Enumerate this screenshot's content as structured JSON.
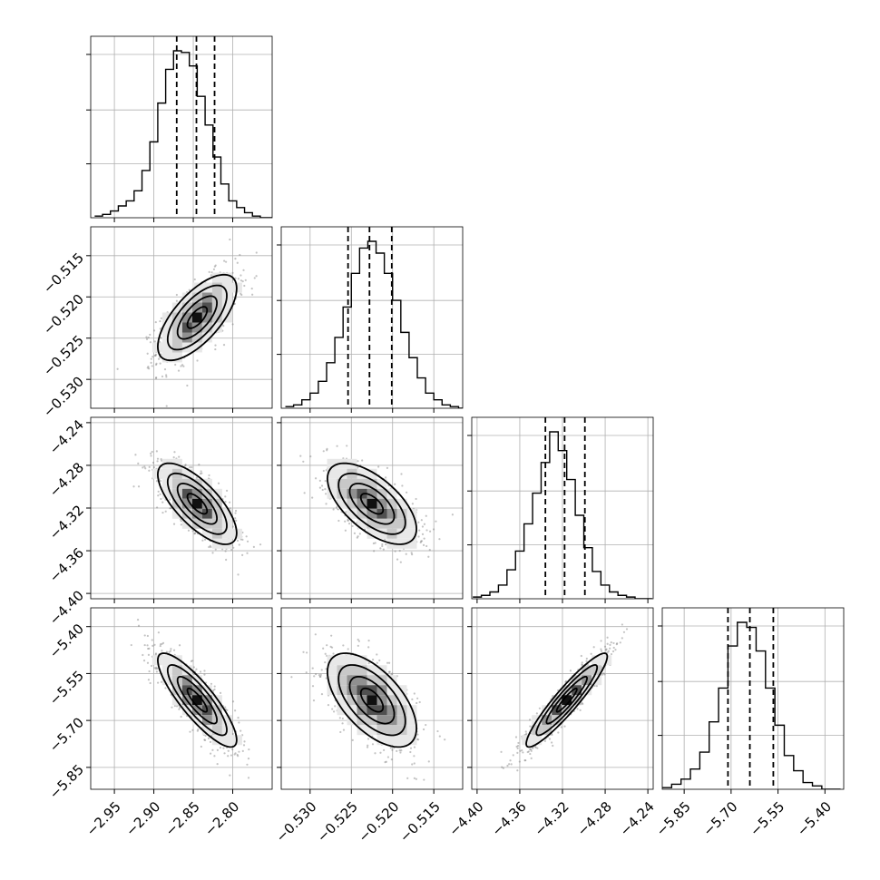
{
  "chart_data": {
    "type": "corner",
    "colors": {
      "line": "#000000",
      "grid": "#b0b0b0",
      "frame": "#000000"
    },
    "grid": true,
    "parameters": [
      {
        "range": [
          -2.98,
          -2.75
        ],
        "ticks": [
          -2.95,
          -2.9,
          -2.85,
          -2.8
        ],
        "tick_labels": [
          "−2.95",
          "−2.90",
          "−2.85",
          "−2.80"
        ]
      },
      {
        "range": [
          -0.5335,
          -0.5115
        ],
        "ticks": [
          -0.53,
          -0.525,
          -0.52,
          -0.515
        ],
        "tick_labels": [
          "−0.530",
          "−0.525",
          "−0.520",
          "−0.515"
        ]
      },
      {
        "range": [
          -4.405,
          -4.235
        ],
        "ticks": [
          -4.4,
          -4.36,
          -4.32,
          -4.28,
          -4.24
        ],
        "tick_labels": [
          "−4.40",
          "−4.36",
          "−4.32",
          "−4.28",
          "−4.24"
        ]
      },
      {
        "range": [
          -5.92,
          -5.34
        ],
        "ticks": [
          -5.85,
          -5.7,
          -5.55,
          -5.4
        ],
        "tick_labels": [
          "−5.85",
          "−5.70",
          "−5.55",
          "−5.40"
        ]
      }
    ],
    "histograms": [
      {
        "bin_start": -2.975,
        "bin_width": 0.01,
        "counts": [
          1,
          2,
          4,
          7,
          10,
          16,
          28,
          45,
          68,
          88,
          99,
          98,
          90,
          72,
          55,
          36,
          20,
          10,
          6,
          3,
          1,
          0,
          0
        ],
        "quantiles": [
          -2.871,
          -2.846,
          -2.823
        ]
      },
      {
        "bin_start": -0.533,
        "bin_width": 0.001,
        "counts": [
          1,
          2,
          5,
          9,
          16,
          27,
          42,
          60,
          80,
          95,
          99,
          92,
          80,
          64,
          45,
          30,
          18,
          9,
          5,
          2,
          1,
          0
        ],
        "quantiles": [
          -0.5254,
          -0.5228,
          -0.5201
        ]
      },
      {
        "bin_start": -4.404,
        "bin_width": 0.008,
        "counts": [
          1,
          2,
          4,
          8,
          17,
          28,
          44,
          62,
          80,
          98,
          87,
          70,
          49,
          30,
          16,
          8,
          4,
          2,
          1,
          0,
          0
        ],
        "quantiles": [
          -4.336,
          -4.318,
          -4.299
        ]
      },
      {
        "bin_start": -5.92,
        "bin_width": 0.03,
        "counts": [
          1,
          3,
          6,
          12,
          22,
          40,
          60,
          85,
          99,
          96,
          82,
          60,
          38,
          20,
          11,
          4,
          2,
          0,
          0
        ],
        "quantiles": [
          -5.71,
          -5.64,
          -5.565
        ]
      }
    ],
    "pairs": [
      {
        "x_param": 0,
        "y_param": 1,
        "mean": [
          -2.845,
          -0.5225
        ],
        "sd": [
          0.025,
          0.0026
        ],
        "corr": 0.68
      },
      {
        "x_param": 0,
        "y_param": 2,
        "mean": [
          -2.845,
          -4.316
        ],
        "sd": [
          0.025,
          0.019
        ],
        "corr": -0.72
      },
      {
        "x_param": 1,
        "y_param": 2,
        "mean": [
          -0.5225,
          -4.316
        ],
        "sd": [
          0.0027,
          0.019
        ],
        "corr": -0.62
      },
      {
        "x_param": 0,
        "y_param": 3,
        "mean": [
          -2.845,
          -5.635
        ],
        "sd": [
          0.025,
          0.075
        ],
        "corr": -0.85
      },
      {
        "x_param": 1,
        "y_param": 3,
        "mean": [
          -0.5225,
          -5.635
        ],
        "sd": [
          0.0027,
          0.075
        ],
        "corr": -0.6
      },
      {
        "x_param": 2,
        "y_param": 3,
        "mean": [
          -4.316,
          -5.635
        ],
        "sd": [
          0.019,
          0.075
        ],
        "corr": 0.93
      }
    ]
  }
}
